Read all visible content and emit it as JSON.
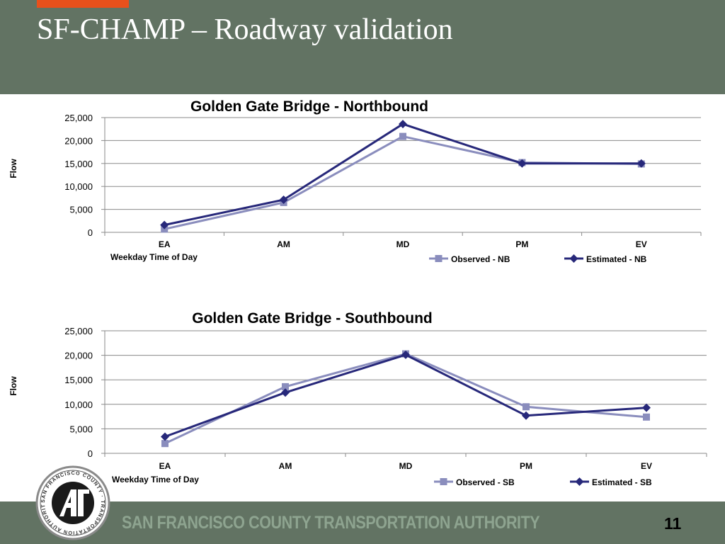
{
  "slide": {
    "title": "SF-CHAMP – Roadway validation",
    "footer": "SAN FRANCISCO COUNTY TRANSPORTATION AUTHORITY",
    "page_number": "11",
    "logo_text": "SAN FRANCISCO COUNTY TRANSPORTATION AUTHORITY"
  },
  "colors": {
    "header": "#627363",
    "accent": "#e8501c",
    "observed": "#8a8dbd",
    "estimated": "#27287a"
  },
  "chart_data": [
    {
      "type": "line",
      "title": "Golden Gate Bridge - Northbound",
      "xlabel": "Weekday Time of Day",
      "ylabel": "Flow",
      "categories": [
        "EA",
        "AM",
        "MD",
        "PM",
        "EV"
      ],
      "ylim": [
        0,
        25000
      ],
      "yticks": [
        "0",
        "5,000",
        "10,000",
        "15,000",
        "20,000",
        "25,000"
      ],
      "grid": true,
      "legend": "bottom-right",
      "series": [
        {
          "name": "Observed - NB",
          "values": [
            700,
            6500,
            20900,
            15200,
            14900
          ],
          "marker": "square"
        },
        {
          "name": "Estimated - NB",
          "values": [
            1600,
            7100,
            23600,
            15000,
            15000
          ],
          "marker": "diamond"
        }
      ]
    },
    {
      "type": "line",
      "title": "Golden Gate Bridge - Southbound",
      "xlabel": "Weekday Time of Day",
      "ylabel": "Flow",
      "categories": [
        "EA",
        "AM",
        "MD",
        "PM",
        "EV"
      ],
      "ylim": [
        0,
        25000
      ],
      "yticks": [
        "0",
        "5,000",
        "10,000",
        "15,000",
        "20,000",
        "25,000"
      ],
      "grid": true,
      "legend": "bottom-right",
      "series": [
        {
          "name": "Observed - SB",
          "values": [
            2000,
            13600,
            20300,
            9500,
            7400
          ],
          "marker": "square"
        },
        {
          "name": "Estimated - SB",
          "values": [
            3400,
            12400,
            20100,
            7700,
            9300
          ],
          "marker": "diamond"
        }
      ]
    }
  ]
}
